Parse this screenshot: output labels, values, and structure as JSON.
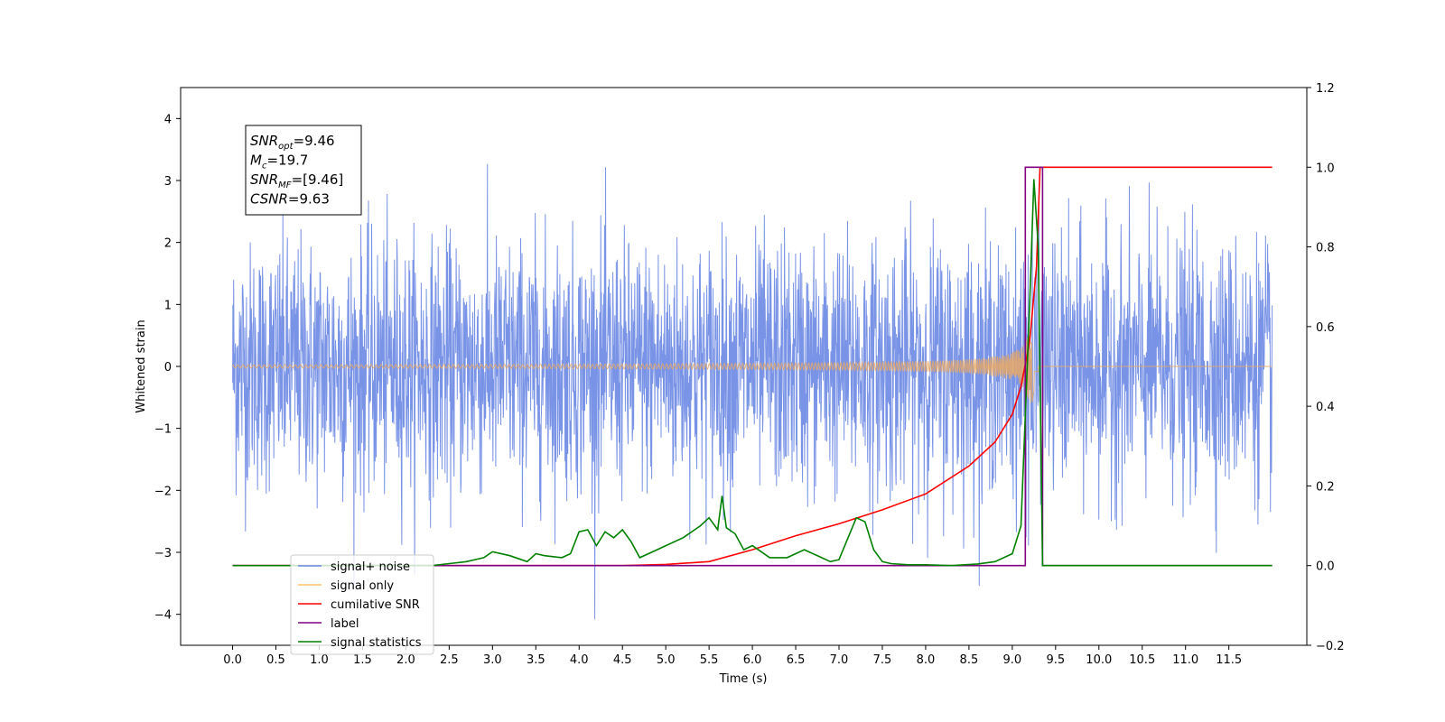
{
  "chart_data": {
    "type": "line",
    "xlabel": "Time (s)",
    "ylabel": "Whitened strain",
    "xlim": [
      -0.6,
      12.4
    ],
    "ylim": [
      -4.5,
      4.5
    ],
    "y2lim": [
      -0.2,
      1.2
    ],
    "x_ticks": [
      0.0,
      0.5,
      1.0,
      1.5,
      2.0,
      2.5,
      3.0,
      3.5,
      4.0,
      4.5,
      5.0,
      5.5,
      6.0,
      6.5,
      7.0,
      7.5,
      8.0,
      8.5,
      9.0,
      9.5,
      10.0,
      10.5,
      11.0,
      11.5
    ],
    "x_tick_labels": [
      "0.0",
      "0.5",
      "1.0",
      "1.5",
      "2.0",
      "2.5",
      "3.0",
      "3.5",
      "4.0",
      "4.5",
      "5.0",
      "5.5",
      "6.0",
      "6.5",
      "7.0",
      "7.5",
      "8.0",
      "8.5",
      "9.0",
      "9.5",
      "10.0",
      "10.5",
      "11.0",
      "11.5"
    ],
    "y_ticks": [
      -4,
      -3,
      -2,
      -1,
      0,
      1,
      2,
      3,
      4
    ],
    "y_tick_labels": [
      "−4",
      "−3",
      "−2",
      "−1",
      "0",
      "1",
      "2",
      "3",
      "4"
    ],
    "y2_ticks": [
      -0.2,
      0.0,
      0.2,
      0.4,
      0.6,
      0.8,
      1.0,
      1.2
    ],
    "y2_tick_labels": [
      "−0.2",
      "0.0",
      "0.2",
      "0.4",
      "0.6",
      "0.8",
      "1.0",
      "1.2"
    ],
    "annotation": {
      "lines": [
        {
          "sym": "SNR",
          "sub": "opt",
          "value": "=9.46"
        },
        {
          "sym": "M",
          "sub": "c",
          "value": "=19.7"
        },
        {
          "sym": "SNR",
          "sub": "MF",
          "value": "=[9.46]"
        },
        {
          "sym": "CSNR",
          "sub": "",
          "value": "=9.63"
        }
      ]
    },
    "legend": {
      "placement": "lower-left",
      "entries": [
        {
          "label": "signal+ noise",
          "color": "#6a87e3"
        },
        {
          "label": "signal only",
          "color": "#ffc46b"
        },
        {
          "label": "cumilative SNR",
          "color": "#ff0000"
        },
        {
          "label": "label",
          "color": "#800080"
        },
        {
          "label": "signal statistics",
          "color": "#008000"
        }
      ]
    },
    "series": [
      {
        "name": "signal+ noise",
        "axis": "left",
        "color": "#6a87e3",
        "description_type": "noise",
        "x_range": [
          0.0,
          12.0
        ],
        "amplitude_std": 1.0
      },
      {
        "name": "signal only",
        "axis": "left",
        "color": "#e8a865",
        "description_type": "chirp",
        "x_range": [
          0.0,
          12.0
        ],
        "merger_time": 9.25,
        "peak_amplitude": 1.0
      },
      {
        "name": "cumilative SNR",
        "axis": "right",
        "color": "#ff0000",
        "x": [
          0.0,
          4.5,
          5.0,
          5.5,
          6.0,
          6.5,
          7.0,
          7.5,
          8.0,
          8.5,
          8.8,
          9.0,
          9.1,
          9.2,
          9.28,
          9.32,
          9.4,
          10.0,
          11.0,
          12.0
        ],
        "y": [
          0.0,
          0.0,
          0.003,
          0.01,
          0.04,
          0.075,
          0.105,
          0.14,
          0.18,
          0.25,
          0.31,
          0.38,
          0.45,
          0.56,
          0.75,
          1.0,
          1.0,
          1.0,
          1.0,
          1.0
        ]
      },
      {
        "name": "label",
        "axis": "right",
        "color": "#800080",
        "x": [
          0.0,
          9.15,
          9.15,
          9.35,
          9.35,
          12.0
        ],
        "y": [
          0.0,
          0.0,
          1.0,
          1.0,
          0.0,
          0.0
        ]
      },
      {
        "name": "signal statistics",
        "axis": "right",
        "color": "#008000",
        "x": [
          0.0,
          2.3,
          2.5,
          2.7,
          2.9,
          3.0,
          3.2,
          3.4,
          3.5,
          3.6,
          3.8,
          3.9,
          4.0,
          4.1,
          4.2,
          4.3,
          4.4,
          4.5,
          4.6,
          4.7,
          4.8,
          4.9,
          5.0,
          5.2,
          5.4,
          5.5,
          5.6,
          5.65,
          5.7,
          5.8,
          5.9,
          6.0,
          6.2,
          6.4,
          6.5,
          6.6,
          6.8,
          6.9,
          7.0,
          7.2,
          7.3,
          7.4,
          7.5,
          7.6,
          7.8,
          8.0,
          8.3,
          8.6,
          8.8,
          9.0,
          9.1,
          9.2,
          9.25,
          9.3,
          9.35,
          12.0
        ],
        "y": [
          0.0,
          0.0,
          0.005,
          0.01,
          0.02,
          0.035,
          0.025,
          0.01,
          0.03,
          0.025,
          0.02,
          0.03,
          0.085,
          0.09,
          0.05,
          0.085,
          0.07,
          0.09,
          0.06,
          0.02,
          0.03,
          0.04,
          0.05,
          0.07,
          0.1,
          0.12,
          0.09,
          0.175,
          0.095,
          0.08,
          0.04,
          0.05,
          0.02,
          0.02,
          0.03,
          0.04,
          0.02,
          0.01,
          0.015,
          0.12,
          0.11,
          0.04,
          0.01,
          0.005,
          0.002,
          0.002,
          0.0,
          0.004,
          0.01,
          0.03,
          0.1,
          0.65,
          0.97,
          0.8,
          0.0,
          0.0
        ]
      }
    ]
  }
}
